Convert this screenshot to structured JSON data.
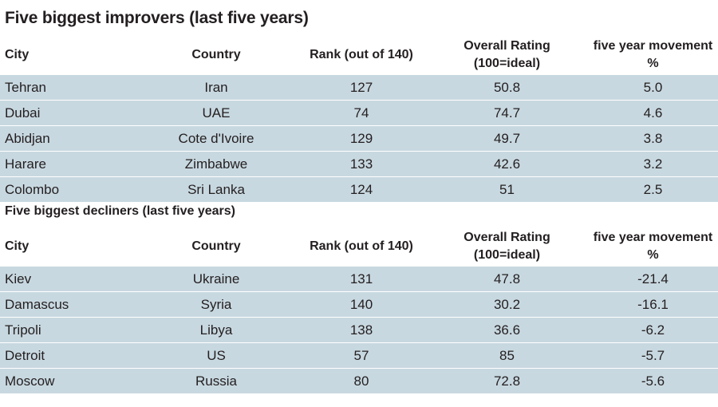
{
  "title": "Five biggest improvers (last five years)",
  "subtitle": "Five biggest decliners (last five years)",
  "headers": {
    "city": "City",
    "country": "Country",
    "rank": "Rank (out of 140)",
    "rating_line1": "Overall Rating",
    "rating_line2": "(100=ideal)",
    "movement": "five year movement %"
  },
  "chart_data": [
    {
      "type": "table",
      "title": "Five biggest improvers (last five years)",
      "columns": [
        "City",
        "Country",
        "Rank (out of 140)",
        "Overall Rating (100=ideal)",
        "five year movement %"
      ],
      "rows": [
        [
          "Tehran",
          "Iran",
          "127",
          "50.8",
          "5.0"
        ],
        [
          "Dubai",
          "UAE",
          "74",
          "74.7",
          "4.6"
        ],
        [
          "Abidjan",
          "Cote d'Ivoire",
          "129",
          "49.7",
          "3.8"
        ],
        [
          "Harare",
          "Zimbabwe",
          "133",
          "42.6",
          "3.2"
        ],
        [
          "Colombo",
          "Sri Lanka",
          "124",
          "51",
          "2.5"
        ]
      ]
    },
    {
      "type": "table",
      "title": "Five biggest decliners (last five years)",
      "columns": [
        "City",
        "Country",
        "Rank (out of 140)",
        "Overall Rating (100=ideal)",
        "five year movement %"
      ],
      "rows": [
        [
          "Kiev",
          "Ukraine",
          "131",
          "47.8",
          "-21.4"
        ],
        [
          "Damascus",
          "Syria",
          "140",
          "30.2",
          "-16.1"
        ],
        [
          "Tripoli",
          "Libya",
          "138",
          "36.6",
          "-6.2"
        ],
        [
          "Detroit",
          "US",
          "57",
          "85",
          "-5.7"
        ],
        [
          "Moscow",
          "Russia",
          "80",
          "72.8",
          "-5.6"
        ]
      ]
    }
  ],
  "colors": {
    "row_background": "#c8d8e0",
    "text": "#231f20"
  }
}
